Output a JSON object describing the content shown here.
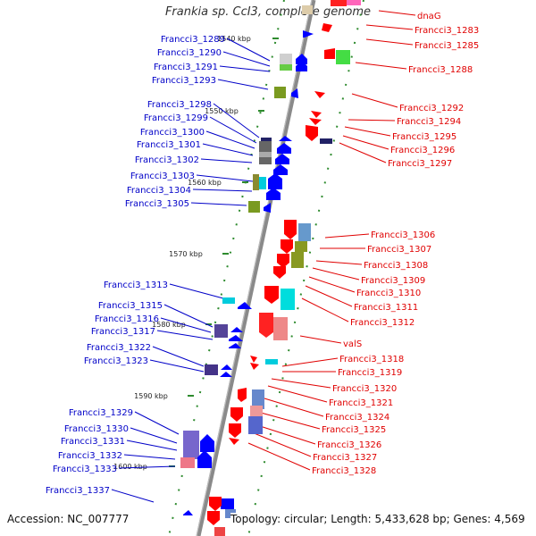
{
  "title": "Frankia sp. CcI3, complete genome",
  "footer": {
    "accession": "Accession: NC_007777",
    "summary": "Topology: circular; Length: 5,433,628 bp; Genes: 4,569"
  },
  "colors": {
    "forward_label": "#0000c8",
    "reverse_label": "#e00000",
    "backbone": "#8a8a8a",
    "tick": "#2e8b2e"
  },
  "kbp_ticks": [
    "1540 kbp",
    "1550 kbp",
    "1560 kbp",
    "1570 kbp",
    "1580 kbp",
    "1590 kbp",
    "1600 kbp"
  ],
  "forward_genes": [
    "Francci3_1289",
    "Francci3_1290",
    "Francci3_1291",
    "Francci3_1293",
    "Francci3_1298",
    "Francci3_1299",
    "Francci3_1300",
    "Francci3_1301",
    "Francci3_1302",
    "Francci3_1303",
    "Francci3_1304",
    "Francci3_1305",
    "Francci3_1313",
    "Francci3_1315",
    "Francci3_1316",
    "Francci3_1317",
    "Francci3_1322",
    "Francci3_1323",
    "Francci3_1329",
    "Francci3_1330",
    "Francci3_1331",
    "Francci3_1332",
    "Francci3_1333",
    "Francci3_1337"
  ],
  "reverse_genes": [
    "dnaG",
    "Francci3_1283",
    "Francci3_1285",
    "Francci3_1288",
    "Francci3_1292",
    "Francci3_1294",
    "Francci3_1295",
    "Francci3_1296",
    "Francci3_1297",
    "Francci3_1306",
    "Francci3_1307",
    "Francci3_1308",
    "Francci3_1309",
    "Francci3_1310",
    "Francci3_1311",
    "Francci3_1312",
    "valS",
    "Francci3_1318",
    "Francci3_1319",
    "Francci3_1320",
    "Francci3_1321",
    "Francci3_1324",
    "Francci3_1325",
    "Francci3_1326",
    "Francci3_1327",
    "Francci3_1328"
  ]
}
